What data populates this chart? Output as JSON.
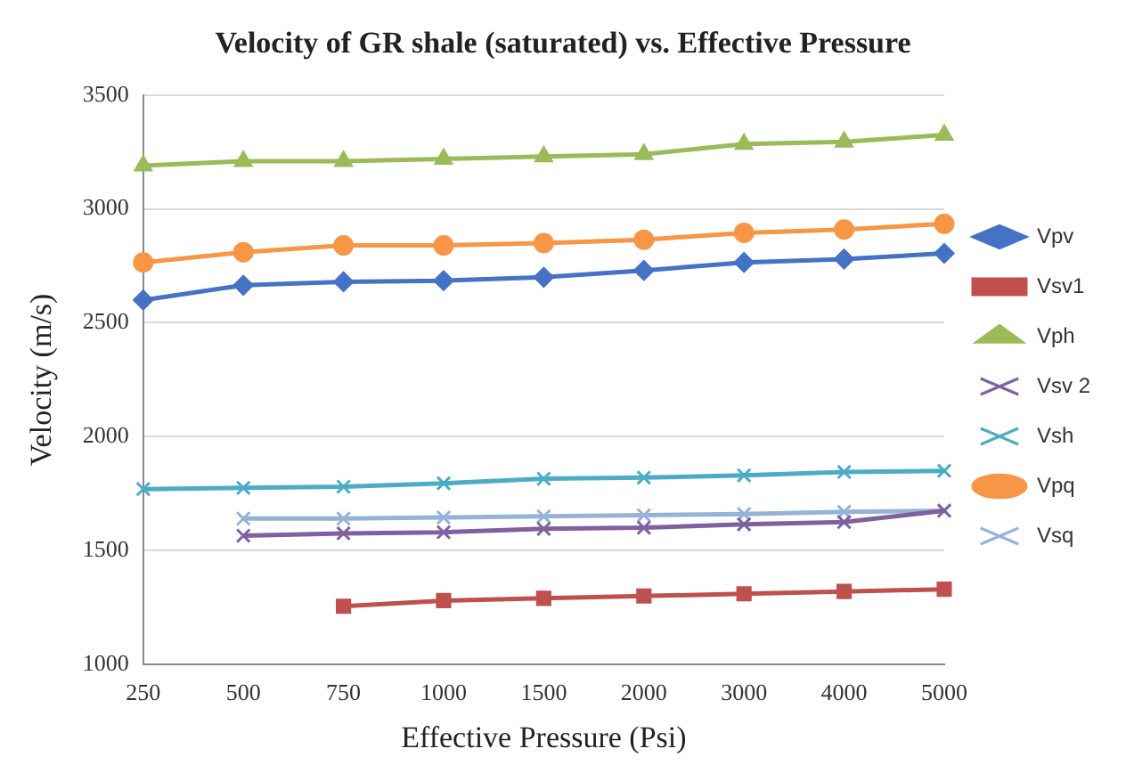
{
  "chart_data": {
    "type": "line",
    "title": "Velocity of GR shale (saturated) vs. Effective Pressure",
    "xlabel": "Effective Pressure (Psi)",
    "ylabel": "Velocity (m/s)",
    "categories": [
      "250",
      "500",
      "750",
      "1000",
      "1500",
      "2000",
      "3000",
      "4000",
      "5000"
    ],
    "ylim": [
      1000,
      3500
    ],
    "yticks": [
      1000,
      1500,
      2000,
      2500,
      3000,
      3500
    ],
    "grid": "y",
    "legend": "right",
    "series": [
      {
        "name": "Vpv",
        "color": "#4472c4",
        "marker": "diamond",
        "values": [
          2600,
          2665,
          2680,
          2685,
          2700,
          2730,
          2765,
          2780,
          2805
        ]
      },
      {
        "name": "Vsv1",
        "color": "#c0504d",
        "marker": "square",
        "values": [
          null,
          null,
          1255,
          1280,
          1290,
          1300,
          1310,
          1320,
          1330
        ]
      },
      {
        "name": "Vph",
        "color": "#9bbb59",
        "marker": "triangle",
        "values": [
          3190,
          3210,
          3210,
          3220,
          3230,
          3240,
          3285,
          3295,
          3325
        ]
      },
      {
        "name": "Vsv 2",
        "color": "#7f60a0",
        "marker": "cross",
        "values": [
          null,
          1565,
          1575,
          1580,
          1595,
          1600,
          1615,
          1625,
          1675
        ]
      },
      {
        "name": "Vsh",
        "color": "#4bacc6",
        "marker": "cross",
        "values": [
          1770,
          1775,
          1780,
          1795,
          1815,
          1820,
          1830,
          1845,
          1850
        ]
      },
      {
        "name": "Vpq",
        "color": "#f79646",
        "marker": "circle",
        "values": [
          2765,
          2810,
          2840,
          2840,
          2850,
          2865,
          2895,
          2910,
          2935
        ]
      },
      {
        "name": "Vsq",
        "color": "#95b3d7",
        "marker": "cross",
        "values": [
          null,
          1640,
          1640,
          1645,
          1650,
          1655,
          1660,
          1670,
          1675
        ]
      }
    ]
  }
}
